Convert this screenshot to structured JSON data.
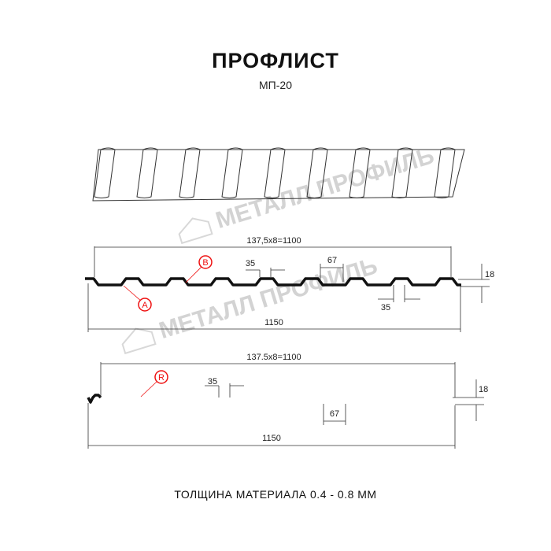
{
  "header": {
    "title": "ПРОФЛИСТ",
    "subtitle": "МП-20"
  },
  "watermark": {
    "text": "МЕТАЛЛ ПРОФИЛЬ"
  },
  "profile_top": {
    "pitch_label": "137,5x8=1100",
    "width_label": "1150",
    "crest_label": "35",
    "trough_label": "67",
    "crest_label_2": "35",
    "height_label": "18",
    "marker_a": "A",
    "marker_b": "B"
  },
  "profile_bottom": {
    "pitch_label": "137.5x8=1100",
    "width_label": "1150",
    "crest_label": "35",
    "trough_label": "67",
    "height_label": "18",
    "marker_r": "R"
  },
  "footer": {
    "thickness": "ТОЛЩИНА МАТЕРИАЛА 0.4 - 0.8 ММ"
  },
  "colors": {
    "marker": "#e11",
    "line": "#111",
    "watermark": "#d3d3d3"
  }
}
